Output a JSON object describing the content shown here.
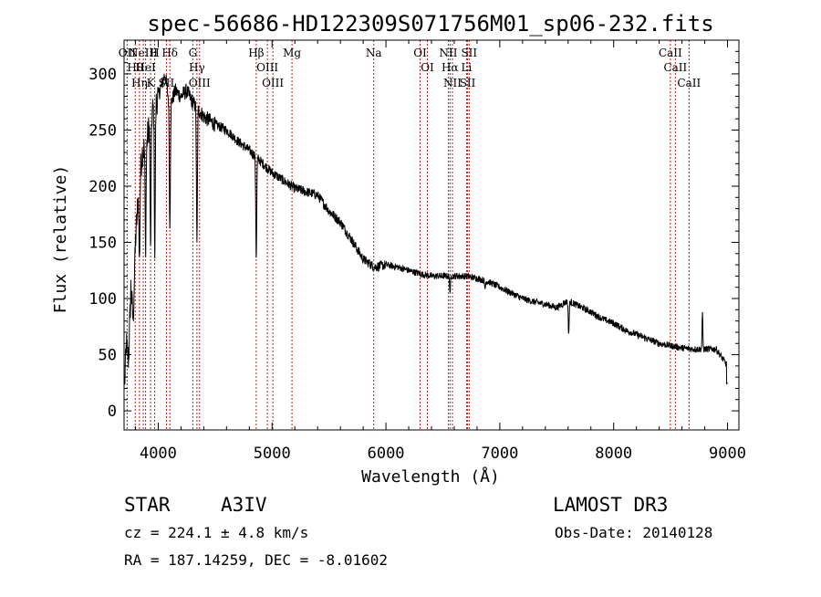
{
  "chart_data": {
    "type": "line",
    "title": "spec-56686-HD122309S071756M01_sp06-232.fits",
    "xlabel": "Wavelength (Å)",
    "ylabel": "Flux (relative)",
    "xlim": [
      3700,
      9100
    ],
    "ylim": [
      -17,
      330
    ],
    "xticks": [
      4000,
      5000,
      6000,
      7000,
      8000,
      9000
    ],
    "yticks": [
      0,
      50,
      100,
      150,
      200,
      250,
      300
    ],
    "grid": false,
    "line_color": "#000000",
    "marker_color": "#b22222",
    "spectrum_anchors": {
      "x": [
        3700,
        3720,
        3740,
        3760,
        3780,
        3800,
        3830,
        3860,
        3900,
        3930,
        3960,
        4000,
        4030,
        4060,
        4100,
        4150,
        4200,
        4250,
        4300,
        4400,
        4500,
        4600,
        4700,
        4800,
        4900,
        5000,
        5100,
        5200,
        5300,
        5400,
        5500,
        5600,
        5700,
        5800,
        5900,
        6000,
        6100,
        6200,
        6300,
        6400,
        6500,
        6600,
        6700,
        6800,
        6900,
        7000,
        7100,
        7200,
        7300,
        7400,
        7500,
        7600,
        7700,
        7800,
        7900,
        8000,
        8100,
        8200,
        8300,
        8400,
        8500,
        8600,
        8700,
        8800,
        8900,
        9000
      ],
      "y": [
        10,
        60,
        45,
        110,
        80,
        150,
        200,
        230,
        240,
        260,
        270,
        280,
        290,
        300,
        270,
        285,
        280,
        285,
        275,
        262,
        255,
        250,
        240,
        232,
        222,
        212,
        205,
        198,
        195,
        192,
        178,
        168,
        152,
        135,
        128,
        130,
        128,
        125,
        122,
        120,
        120,
        120,
        120,
        118,
        115,
        110,
        105,
        100,
        97,
        95,
        92,
        98,
        93,
        88,
        82,
        78,
        72,
        68,
        64,
        60,
        58,
        56,
        55,
        55,
        55,
        40
      ]
    },
    "absorption_features": [
      {
        "x": 3835,
        "depth": 0.35
      },
      {
        "x": 3889,
        "depth": 0.4
      },
      {
        "x": 3933,
        "depth": 0.45
      },
      {
        "x": 3970,
        "depth": 0.5
      },
      {
        "x": 4102,
        "depth": 0.4
      },
      {
        "x": 4340,
        "depth": 0.45
      },
      {
        "x": 4861,
        "depth": 0.4
      },
      {
        "x": 6563,
        "depth": 0.12
      },
      {
        "x": 7605,
        "depth": 0.3
      },
      {
        "x": 6870,
        "depth": 0.06
      }
    ],
    "emission_features": [
      {
        "x": 8780,
        "height": 30
      }
    ],
    "line_markers": [
      {
        "x": 3727,
        "labels": [
          "OII"
        ]
      },
      {
        "x": 3798,
        "labels": [
          "Hθ"
        ]
      },
      {
        "x": 3835,
        "labels": [
          "Hη"
        ]
      },
      {
        "x": 3869,
        "labels": [
          "NeIII"
        ]
      },
      {
        "x": 3889,
        "labels": [
          "HeI"
        ]
      },
      {
        "x": 3933,
        "labels": [
          "K"
        ]
      },
      {
        "x": 3969,
        "labels": [
          "H"
        ]
      },
      {
        "x": 4072,
        "labels": [
          "SII"
        ]
      },
      {
        "x": 4102,
        "labels": [
          "Hδ"
        ]
      },
      {
        "x": 4304,
        "labels": [
          "G"
        ]
      },
      {
        "x": 4340,
        "labels": [
          "Hγ"
        ]
      },
      {
        "x": 4363,
        "labels": [
          "OIII"
        ]
      },
      {
        "x": 4861,
        "labels": [
          "Hβ"
        ]
      },
      {
        "x": 4959,
        "labels": [
          "OIII"
        ]
      },
      {
        "x": 5007,
        "labels": [
          "OIII"
        ]
      },
      {
        "x": 5175,
        "labels": [
          "Mg"
        ]
      },
      {
        "x": 5893,
        "labels": [
          "Na"
        ]
      },
      {
        "x": 6300,
        "labels": [
          "OI"
        ]
      },
      {
        "x": 6364,
        "labels": [
          "OI"
        ]
      },
      {
        "x": 6548,
        "labels": [
          "NII"
        ]
      },
      {
        "x": 6563,
        "labels": [
          "Hα"
        ]
      },
      {
        "x": 6584,
        "labels": [
          "NII"
        ]
      },
      {
        "x": 6708,
        "labels": [
          "Li"
        ]
      },
      {
        "x": 6717,
        "labels": [
          "SII"
        ]
      },
      {
        "x": 6731,
        "labels": [
          "SII"
        ]
      },
      {
        "x": 8498,
        "labels": [
          "CaII"
        ]
      },
      {
        "x": 8542,
        "labels": [
          "CaII"
        ]
      },
      {
        "x": 8662,
        "labels": [
          "CaII"
        ]
      }
    ]
  },
  "info": {
    "object_class": "STAR",
    "subclass": "A3IV",
    "survey": "LAMOST DR3",
    "redshift_line": "cz = 224.1 ± 4.8 km/s",
    "obs_date_line": "Obs-Date: 20140128",
    "coords_line": "RA = 187.14259, DEC =  -8.01602"
  }
}
